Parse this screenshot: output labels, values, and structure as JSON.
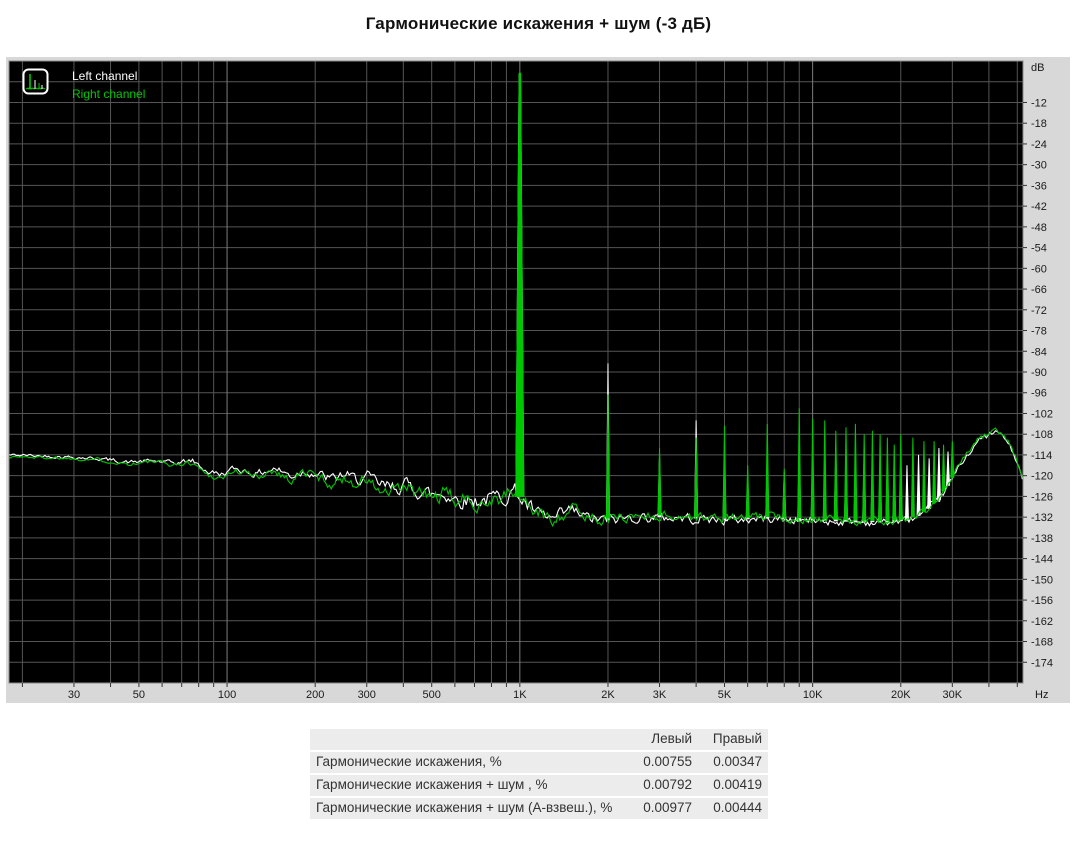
{
  "page": {
    "title": "Гармонические искажения + шум (-3 дБ)"
  },
  "chart_data": {
    "type": "line",
    "title": "Гармонические искажения + шум (-3 дБ)",
    "background": "#000000",
    "grid_color": "#555555",
    "decade_grid_color": "#7d7d7d",
    "x_axis": {
      "scale": "log",
      "unit": "Hz",
      "min_hz": 18,
      "max_hz": 52300,
      "ticks": [
        {
          "f": 30,
          "label": "30"
        },
        {
          "f": 50,
          "label": "50"
        },
        {
          "f": 100,
          "label": "100"
        },
        {
          "f": 200,
          "label": "200"
        },
        {
          "f": 300,
          "label": "300"
        },
        {
          "f": 500,
          "label": "500"
        },
        {
          "f": 1000,
          "label": "1K"
        },
        {
          "f": 2000,
          "label": "2K"
        },
        {
          "f": 3000,
          "label": "3K"
        },
        {
          "f": 5000,
          "label": "5K"
        },
        {
          "f": 10000,
          "label": "10K"
        },
        {
          "f": 20000,
          "label": "20K"
        },
        {
          "f": 30000,
          "label": "30K"
        }
      ]
    },
    "y_axis": {
      "unit": "dB",
      "top_db": 0,
      "bottom_db": -180,
      "grid_step_db": 6,
      "first_label_db": -12,
      "last_label_db": -174,
      "label_step_db": 6
    },
    "series": [
      {
        "name": "Left channel",
        "color": "#ffffff",
        "fundamental": {
          "f": 1000,
          "db": -3.8
        },
        "harmonics": [
          [
            2000,
            -87.5
          ],
          [
            3000,
            -114
          ],
          [
            4000,
            -104
          ],
          [
            5000,
            -113
          ],
          [
            6000,
            -121
          ],
          [
            7000,
            -114
          ],
          [
            8000,
            -119
          ],
          [
            9000,
            -112
          ],
          [
            10000,
            -114
          ],
          [
            11000,
            -117
          ],
          [
            12000,
            -113
          ],
          [
            13000,
            -116
          ],
          [
            14000,
            -118
          ],
          [
            15000,
            -114
          ],
          [
            16000,
            -119
          ],
          [
            17000,
            -117
          ],
          [
            18000,
            -116
          ],
          [
            19000,
            -119
          ],
          [
            20000,
            -115
          ],
          [
            21000,
            -117
          ],
          [
            23000,
            -114
          ],
          [
            25000,
            -115
          ],
          [
            27000,
            -112
          ],
          [
            29000,
            -113
          ]
        ],
        "floor_envelope": [
          [
            18,
            -114
          ],
          [
            26,
            -114.4
          ],
          [
            36,
            -115
          ],
          [
            46,
            -116.1
          ],
          [
            56,
            -115.7
          ],
          [
            66,
            -116.4
          ],
          [
            76,
            -115.6
          ],
          [
            86,
            -118.9
          ],
          [
            96,
            -119.6
          ],
          [
            106,
            -118
          ],
          [
            116,
            -118.6
          ],
          [
            126,
            -119.6
          ],
          [
            136,
            -118.6
          ],
          [
            146,
            -117.9
          ],
          [
            156,
            -119.1
          ],
          [
            166,
            -120.1
          ],
          [
            176,
            -119
          ],
          [
            190,
            -118.6
          ],
          [
            210,
            -120.1
          ],
          [
            230,
            -121.1
          ],
          [
            250,
            -119.6
          ],
          [
            270,
            -121.1
          ],
          [
            300,
            -120.6
          ],
          [
            330,
            -122.6
          ],
          [
            360,
            -123.6
          ],
          [
            400,
            -122.6
          ],
          [
            450,
            -124.1
          ],
          [
            500,
            -125.6
          ],
          [
            550,
            -125.1
          ],
          [
            600,
            -126.6
          ],
          [
            700,
            -127.1
          ],
          [
            800,
            -126.6
          ],
          [
            900,
            -125.6
          ],
          [
            955,
            -124.1
          ],
          [
            1055,
            -128.4
          ],
          [
            1150,
            -131.4
          ],
          [
            1300,
            -132.9
          ],
          [
            1500,
            -130.1
          ],
          [
            1700,
            -132.4
          ],
          [
            2000,
            -132.9
          ],
          [
            2500,
            -132
          ],
          [
            3000,
            -132
          ],
          [
            4000,
            -132.4
          ],
          [
            5000,
            -132.9
          ],
          [
            7000,
            -132.4
          ],
          [
            10000,
            -133
          ],
          [
            14000,
            -133.4
          ],
          [
            18000,
            -133.5
          ],
          [
            21000,
            -133
          ],
          [
            24000,
            -131
          ],
          [
            27000,
            -127
          ],
          [
            30000,
            -121
          ],
          [
            33000,
            -115
          ],
          [
            36000,
            -110.6
          ],
          [
            40000,
            -108.2
          ],
          [
            43000,
            -107.4
          ],
          [
            46000,
            -109.9
          ],
          [
            49000,
            -114.4
          ],
          [
            51500,
            -119.4
          ],
          [
            52300,
            -122
          ]
        ]
      },
      {
        "name": "Right channel",
        "color": "#00c800",
        "fundamental": {
          "f": 1000,
          "db": -3.4
        },
        "harmonics": [
          [
            2000,
            -96.5
          ],
          [
            3000,
            -112
          ],
          [
            4000,
            -109
          ],
          [
            5000,
            -105.5
          ],
          [
            6000,
            -117
          ],
          [
            7000,
            -105
          ],
          [
            8000,
            -118
          ],
          [
            9000,
            -100.5
          ],
          [
            10000,
            -103.5
          ],
          [
            11000,
            -104
          ],
          [
            12000,
            -107
          ],
          [
            13000,
            -106
          ],
          [
            14000,
            -105
          ],
          [
            15000,
            -108
          ],
          [
            16000,
            -107
          ],
          [
            17000,
            -108
          ],
          [
            18000,
            -109
          ],
          [
            19000,
            -111
          ],
          [
            20000,
            -108
          ],
          [
            22000,
            -109
          ],
          [
            24000,
            -110
          ],
          [
            26000,
            -110
          ],
          [
            28000,
            -111
          ],
          [
            30000,
            -110
          ]
        ],
        "floor_envelope": [
          [
            18,
            -114.5
          ],
          [
            26,
            -114.8
          ],
          [
            36,
            -115.3
          ],
          [
            46,
            -116.6
          ],
          [
            56,
            -116
          ],
          [
            66,
            -116.9
          ],
          [
            76,
            -116.2
          ],
          [
            86,
            -119.8
          ],
          [
            96,
            -120.7
          ],
          [
            106,
            -118.6
          ],
          [
            116,
            -119.2
          ],
          [
            126,
            -120.6
          ],
          [
            136,
            -119.1
          ],
          [
            146,
            -118.3
          ],
          [
            156,
            -120.1
          ],
          [
            166,
            -121.4
          ],
          [
            176,
            -119.6
          ],
          [
            190,
            -119.1
          ],
          [
            210,
            -121
          ],
          [
            230,
            -122.4
          ],
          [
            250,
            -120.6
          ],
          [
            270,
            -122
          ],
          [
            300,
            -121.2
          ],
          [
            330,
            -124.4
          ],
          [
            360,
            -125.4
          ],
          [
            400,
            -123.6
          ],
          [
            450,
            -125
          ],
          [
            500,
            -126.4
          ],
          [
            550,
            -125.6
          ],
          [
            600,
            -127
          ],
          [
            700,
            -127.6
          ],
          [
            800,
            -127
          ],
          [
            900,
            -126
          ],
          [
            955,
            -124.6
          ],
          [
            1055,
            -128
          ],
          [
            1150,
            -131
          ],
          [
            1300,
            -132.4
          ],
          [
            1500,
            -129.6
          ],
          [
            1700,
            -131.9
          ],
          [
            2000,
            -132.4
          ],
          [
            2500,
            -131.6
          ],
          [
            3000,
            -131.5
          ],
          [
            4000,
            -132
          ],
          [
            5000,
            -132.4
          ],
          [
            7000,
            -132
          ],
          [
            10000,
            -132.5
          ],
          [
            14000,
            -133
          ],
          [
            18000,
            -133.2
          ],
          [
            21000,
            -132.6
          ],
          [
            24000,
            -130.6
          ],
          [
            27000,
            -126.6
          ],
          [
            30000,
            -120.6
          ],
          [
            33000,
            -114.6
          ],
          [
            36000,
            -110
          ],
          [
            40000,
            -107.8
          ],
          [
            43000,
            -107
          ],
          [
            46000,
            -109.4
          ],
          [
            49000,
            -114
          ],
          [
            51500,
            -119
          ],
          [
            52300,
            -121.6
          ]
        ]
      }
    ],
    "jitter_envelope": [
      [
        18,
        0.4
      ],
      [
        60,
        0.6
      ],
      [
        120,
        1.0
      ],
      [
        250,
        1.6
      ],
      [
        400,
        2.1
      ],
      [
        700,
        2.3
      ],
      [
        1000,
        2.2
      ],
      [
        1400,
        1.9
      ],
      [
        2500,
        1.4
      ],
      [
        8000,
        1.2
      ],
      [
        20000,
        1.1
      ],
      [
        35000,
        0.9
      ],
      [
        52300,
        0.7
      ]
    ],
    "legend_position": "top-left"
  },
  "table": {
    "col_headers": [
      "Левый",
      "Правый"
    ],
    "rows": [
      {
        "label": "Гармонические искажения, %",
        "left": "0.00755",
        "right": "0.00347"
      },
      {
        "label": "Гармонические искажения + шум , %",
        "left": "0.00792",
        "right": "0.00419"
      },
      {
        "label": "Гармонические искажения + шум (А-взвеш.), %",
        "left": "0.00977",
        "right": "0.00444"
      }
    ]
  }
}
